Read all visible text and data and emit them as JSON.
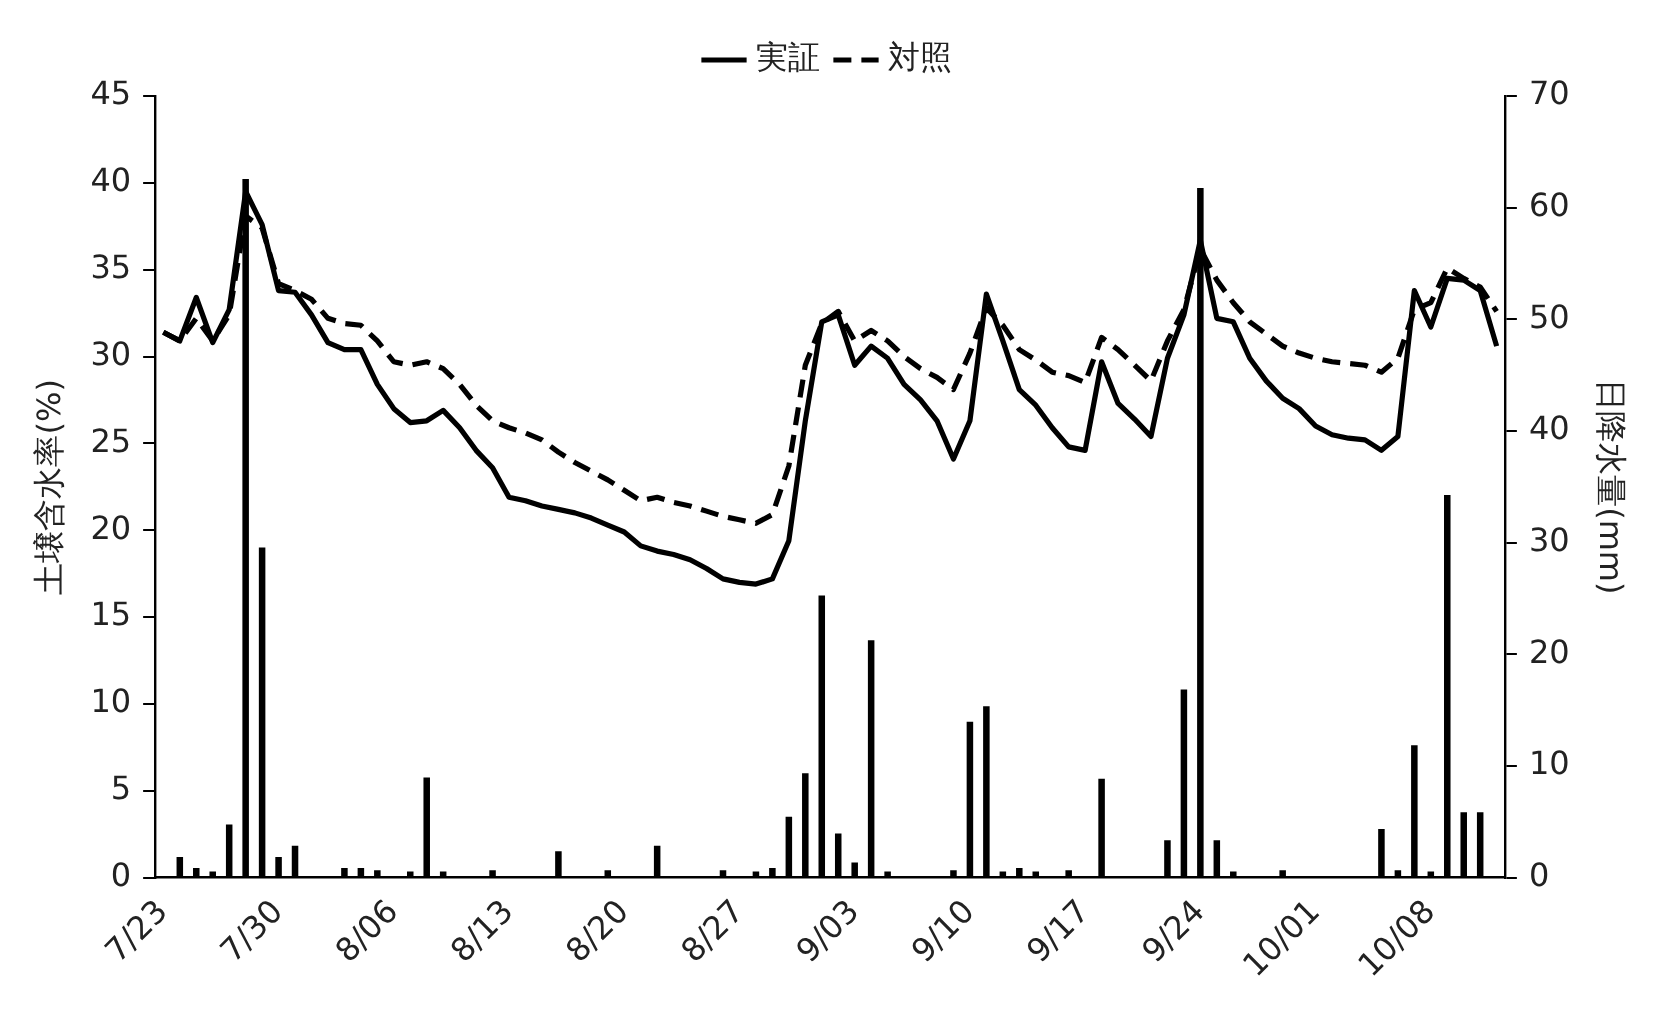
{
  "chart_data": {
    "type": "line",
    "categories": [
      "7/23",
      null,
      null,
      null,
      null,
      null,
      null,
      "7/30",
      null,
      null,
      null,
      null,
      null,
      null,
      "8/06",
      null,
      null,
      null,
      null,
      null,
      null,
      "8/13",
      null,
      null,
      null,
      null,
      null,
      null,
      "8/20",
      null,
      null,
      null,
      null,
      null,
      null,
      "8/27",
      null,
      null,
      null,
      null,
      null,
      null,
      "9/03",
      null,
      null,
      null,
      null,
      null,
      null,
      "9/10",
      null,
      null,
      null,
      null,
      null,
      null,
      "9/17",
      null,
      null,
      null,
      null,
      null,
      null,
      "9/24",
      null,
      null,
      null,
      null,
      null,
      null,
      "10/01",
      null,
      null,
      null,
      null,
      null,
      null,
      "10/08",
      null,
      null,
      null,
      null
    ],
    "series": [
      {
        "name": "実証",
        "color": "#000000",
        "line_style": "solid",
        "values": [
          31.4,
          30.9,
          33.4,
          30.8,
          32.7,
          39.5,
          37.6,
          33.8,
          33.7,
          32.4,
          30.8,
          30.4,
          30.4,
          28.4,
          27.0,
          26.2,
          26.3,
          26.9,
          25.9,
          24.6,
          23.6,
          21.9,
          21.7,
          21.4,
          21.2,
          21.0,
          20.7,
          20.3,
          19.9,
          19.1,
          18.8,
          18.6,
          18.3,
          17.8,
          17.2,
          17.0,
          16.9,
          17.2,
          19.4,
          26.3,
          32.0,
          32.4,
          29.5,
          30.6,
          29.9,
          28.4,
          27.5,
          26.3,
          24.1,
          26.3,
          33.6,
          30.9,
          28.1,
          27.2,
          25.9,
          24.8,
          24.6,
          29.7,
          27.3,
          26.4,
          25.4,
          29.9,
          32.4,
          36.7,
          32.2,
          32.0,
          29.9,
          28.6,
          27.6,
          27.0,
          26.0,
          25.5,
          25.3,
          25.2,
          24.6,
          25.4,
          33.8,
          31.7,
          34.5,
          34.4,
          33.8,
          30.6
        ]
      },
      {
        "name": "対照",
        "color": "#000000",
        "line_style": "dashed",
        "values": [
          31.4,
          30.9,
          32.2,
          30.9,
          32.4,
          38.1,
          37.4,
          34.2,
          33.8,
          33.3,
          32.2,
          31.9,
          31.8,
          30.9,
          29.7,
          29.5,
          29.7,
          29.3,
          28.4,
          27.2,
          26.3,
          25.9,
          25.6,
          25.2,
          24.5,
          23.9,
          23.4,
          22.9,
          22.3,
          21.7,
          21.9,
          21.6,
          21.4,
          21.1,
          20.8,
          20.6,
          20.4,
          20.9,
          23.7,
          29.5,
          31.9,
          32.6,
          30.9,
          31.5,
          30.9,
          30.0,
          29.3,
          28.8,
          28.1,
          30.2,
          32.8,
          31.8,
          30.4,
          29.8,
          29.1,
          28.9,
          28.5,
          31.1,
          30.4,
          29.5,
          28.6,
          30.9,
          32.7,
          36.2,
          34.4,
          33.1,
          32.0,
          31.3,
          30.6,
          30.2,
          29.9,
          29.7,
          29.6,
          29.5,
          29.1,
          29.9,
          32.7,
          33.1,
          35.1,
          34.5,
          34.0,
          32.6
        ]
      },
      {
        "type": "bar",
        "axis": "y2",
        "color": "#000000",
        "values": [
          0,
          1.8,
          0.8,
          0.5,
          4.7,
          62.5,
          29.5,
          1.8,
          2.8,
          0,
          0,
          0.8,
          0.8,
          0.6,
          0,
          0.5,
          8.9,
          0.5,
          0,
          0,
          0.6,
          0,
          0,
          0,
          2.3,
          0,
          0,
          0.6,
          0,
          0,
          2.8,
          0,
          0,
          0,
          0.6,
          0,
          0.5,
          0.8,
          5.4,
          9.3,
          25.2,
          3.9,
          1.3,
          21.2,
          0.5,
          0,
          0,
          0,
          0.6,
          13.9,
          15.3,
          0.5,
          0.8,
          0.5,
          0,
          0.6,
          0,
          8.8,
          0,
          0,
          0,
          3.3,
          16.8,
          61.7,
          3.3,
          0.5,
          0,
          0,
          0.6,
          0,
          0,
          0,
          0,
          0,
          4.3,
          0.6,
          11.8,
          0.5,
          34.2,
          5.8,
          5.8,
          0
        ]
      }
    ],
    "ylabel": "土壌含水率(%)",
    "y2label": "日降水量(mm)",
    "ylim": [
      0,
      45
    ],
    "yticks": [
      0,
      5,
      10,
      15,
      20,
      25,
      30,
      35,
      40,
      45
    ],
    "y2lim": [
      0,
      70
    ],
    "y2ticks": [
      0,
      10,
      20,
      30,
      40,
      50,
      60,
      70
    ],
    "legend": "top"
  }
}
